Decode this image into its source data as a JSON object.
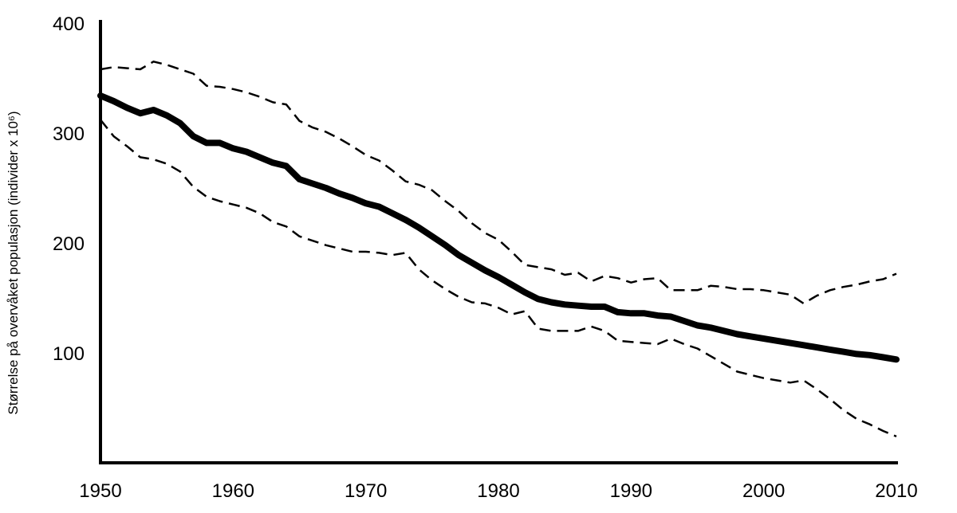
{
  "chart_data": {
    "type": "line",
    "title": "",
    "xlabel": "",
    "ylabel": "Størrelse på overvåket populasjon (individer x 10⁶)",
    "xlim": [
      1950,
      2010
    ],
    "ylim": [
      0,
      400
    ],
    "x_ticks": [
      "1950",
      "1960",
      "1970",
      "1980",
      "1990",
      "2000",
      "2010"
    ],
    "y_ticks": [
      "100",
      "200",
      "300",
      "400"
    ],
    "grid": false,
    "legend": "none",
    "series": [
      {
        "style": "solid-thick",
        "color": "#000000",
        "x": [
          1950,
          1951,
          1952,
          1953,
          1954,
          1955,
          1956,
          1957,
          1958,
          1959,
          1960,
          1961,
          1962,
          1963,
          1964,
          1965,
          1966,
          1967,
          1968,
          1969,
          1970,
          1971,
          1972,
          1973,
          1974,
          1975,
          1976,
          1977,
          1978,
          1979,
          1980,
          1981,
          1982,
          1983,
          1984,
          1985,
          1986,
          1987,
          1988,
          1989,
          1990,
          1991,
          1992,
          1993,
          1994,
          1995,
          1996,
          1997,
          1998,
          1999,
          2000,
          2001,
          2002,
          2003,
          2004,
          2005,
          2006,
          2007,
          2008,
          2009,
          2010
        ],
        "y": [
          334,
          329,
          323,
          318,
          321,
          316,
          309,
          297,
          291,
          291,
          286,
          283,
          278,
          273,
          270,
          258,
          254,
          250,
          245,
          241,
          236,
          233,
          227,
          221,
          214,
          206,
          198,
          189,
          182,
          175,
          169,
          162,
          155,
          149,
          146,
          144,
          143,
          142,
          142,
          137,
          136,
          136,
          134,
          133,
          129,
          125,
          123,
          120,
          117,
          115,
          113,
          111,
          109,
          107,
          105,
          103,
          101,
          99,
          98,
          96,
          94
        ],
        "values": [
          334,
          329,
          323,
          318,
          321,
          316,
          309,
          297,
          291,
          291,
          286,
          283,
          278,
          273,
          270,
          258,
          254,
          250,
          245,
          241,
          236,
          233,
          227,
          221,
          214,
          206,
          198,
          189,
          182,
          175,
          169,
          162,
          155,
          149,
          146,
          144,
          143,
          142,
          142,
          137,
          136,
          136,
          134,
          133,
          129,
          125,
          123,
          120,
          117,
          115,
          113,
          111,
          109,
          107,
          105,
          103,
          101,
          99,
          98,
          96,
          94
        ]
      },
      {
        "style": "dashed",
        "color": "#000000",
        "x": [
          1950,
          1951,
          1952,
          1953,
          1954,
          1955,
          1956,
          1957,
          1958,
          1959,
          1960,
          1961,
          1962,
          1963,
          1964,
          1965,
          1966,
          1967,
          1968,
          1969,
          1970,
          1971,
          1972,
          1973,
          1974,
          1975,
          1976,
          1977,
          1978,
          1979,
          1980,
          1981,
          1982,
          1983,
          1984,
          1985,
          1986,
          1987,
          1988,
          1989,
          1990,
          1991,
          1992,
          1993,
          1994,
          1995,
          1996,
          1997,
          1998,
          1999,
          2000,
          2001,
          2002,
          2003,
          2004,
          2005,
          2006,
          2007,
          2008,
          2009,
          2010
        ],
        "y": [
          358,
          360,
          359,
          358,
          365,
          362,
          358,
          354,
          343,
          342,
          340,
          337,
          333,
          328,
          326,
          311,
          305,
          301,
          295,
          288,
          280,
          275,
          266,
          256,
          253,
          248,
          238,
          229,
          218,
          209,
          203,
          192,
          180,
          178,
          176,
          171,
          173,
          165,
          170,
          168,
          164,
          167,
          168,
          157,
          157,
          157,
          161,
          160,
          158,
          158,
          157,
          155,
          153,
          145,
          152,
          157,
          160,
          162,
          165,
          167,
          172
        ],
        "values": [
          358,
          360,
          359,
          358,
          365,
          362,
          358,
          354,
          343,
          342,
          340,
          337,
          333,
          328,
          326,
          311,
          305,
          301,
          295,
          288,
          280,
          275,
          266,
          256,
          253,
          248,
          238,
          229,
          218,
          209,
          203,
          192,
          180,
          178,
          176,
          171,
          173,
          165,
          170,
          168,
          164,
          167,
          168,
          157,
          157,
          157,
          161,
          160,
          158,
          158,
          157,
          155,
          153,
          145,
          152,
          157,
          160,
          162,
          165,
          167,
          172
        ]
      },
      {
        "style": "dashed",
        "color": "#000000",
        "x": [
          1950,
          1951,
          1952,
          1953,
          1954,
          1955,
          1956,
          1957,
          1958,
          1959,
          1960,
          1961,
          1962,
          1963,
          1964,
          1965,
          1966,
          1967,
          1968,
          1969,
          1970,
          1971,
          1972,
          1973,
          1974,
          1975,
          1976,
          1977,
          1978,
          1979,
          1980,
          1981,
          1982,
          1983,
          1984,
          1985,
          1986,
          1987,
          1988,
          1989,
          1990,
          1991,
          1992,
          1993,
          1994,
          1995,
          1996,
          1997,
          1998,
          1999,
          2000,
          2001,
          2002,
          2003,
          2004,
          2005,
          2006,
          2007,
          2008,
          2009,
          2010
        ],
        "y": [
          312,
          297,
          288,
          278,
          276,
          272,
          265,
          251,
          242,
          238,
          235,
          232,
          227,
          219,
          215,
          206,
          202,
          198,
          195,
          192,
          192,
          191,
          189,
          191,
          176,
          166,
          158,
          151,
          146,
          145,
          141,
          135,
          138,
          122,
          120,
          120,
          120,
          124,
          120,
          111,
          110,
          109,
          108,
          113,
          108,
          104,
          97,
          90,
          83,
          80,
          77,
          75,
          73,
          75,
          67,
          58,
          48,
          40,
          35,
          29,
          24
        ],
        "values": [
          312,
          297,
          288,
          278,
          276,
          272,
          265,
          251,
          242,
          238,
          235,
          232,
          227,
          219,
          215,
          206,
          202,
          198,
          195,
          192,
          192,
          191,
          189,
          191,
          176,
          166,
          158,
          151,
          146,
          145,
          141,
          135,
          138,
          122,
          120,
          120,
          120,
          124,
          120,
          111,
          110,
          109,
          108,
          113,
          108,
          104,
          97,
          90,
          83,
          80,
          77,
          75,
          73,
          75,
          67,
          58,
          48,
          40,
          35,
          29,
          24
        ]
      }
    ]
  }
}
